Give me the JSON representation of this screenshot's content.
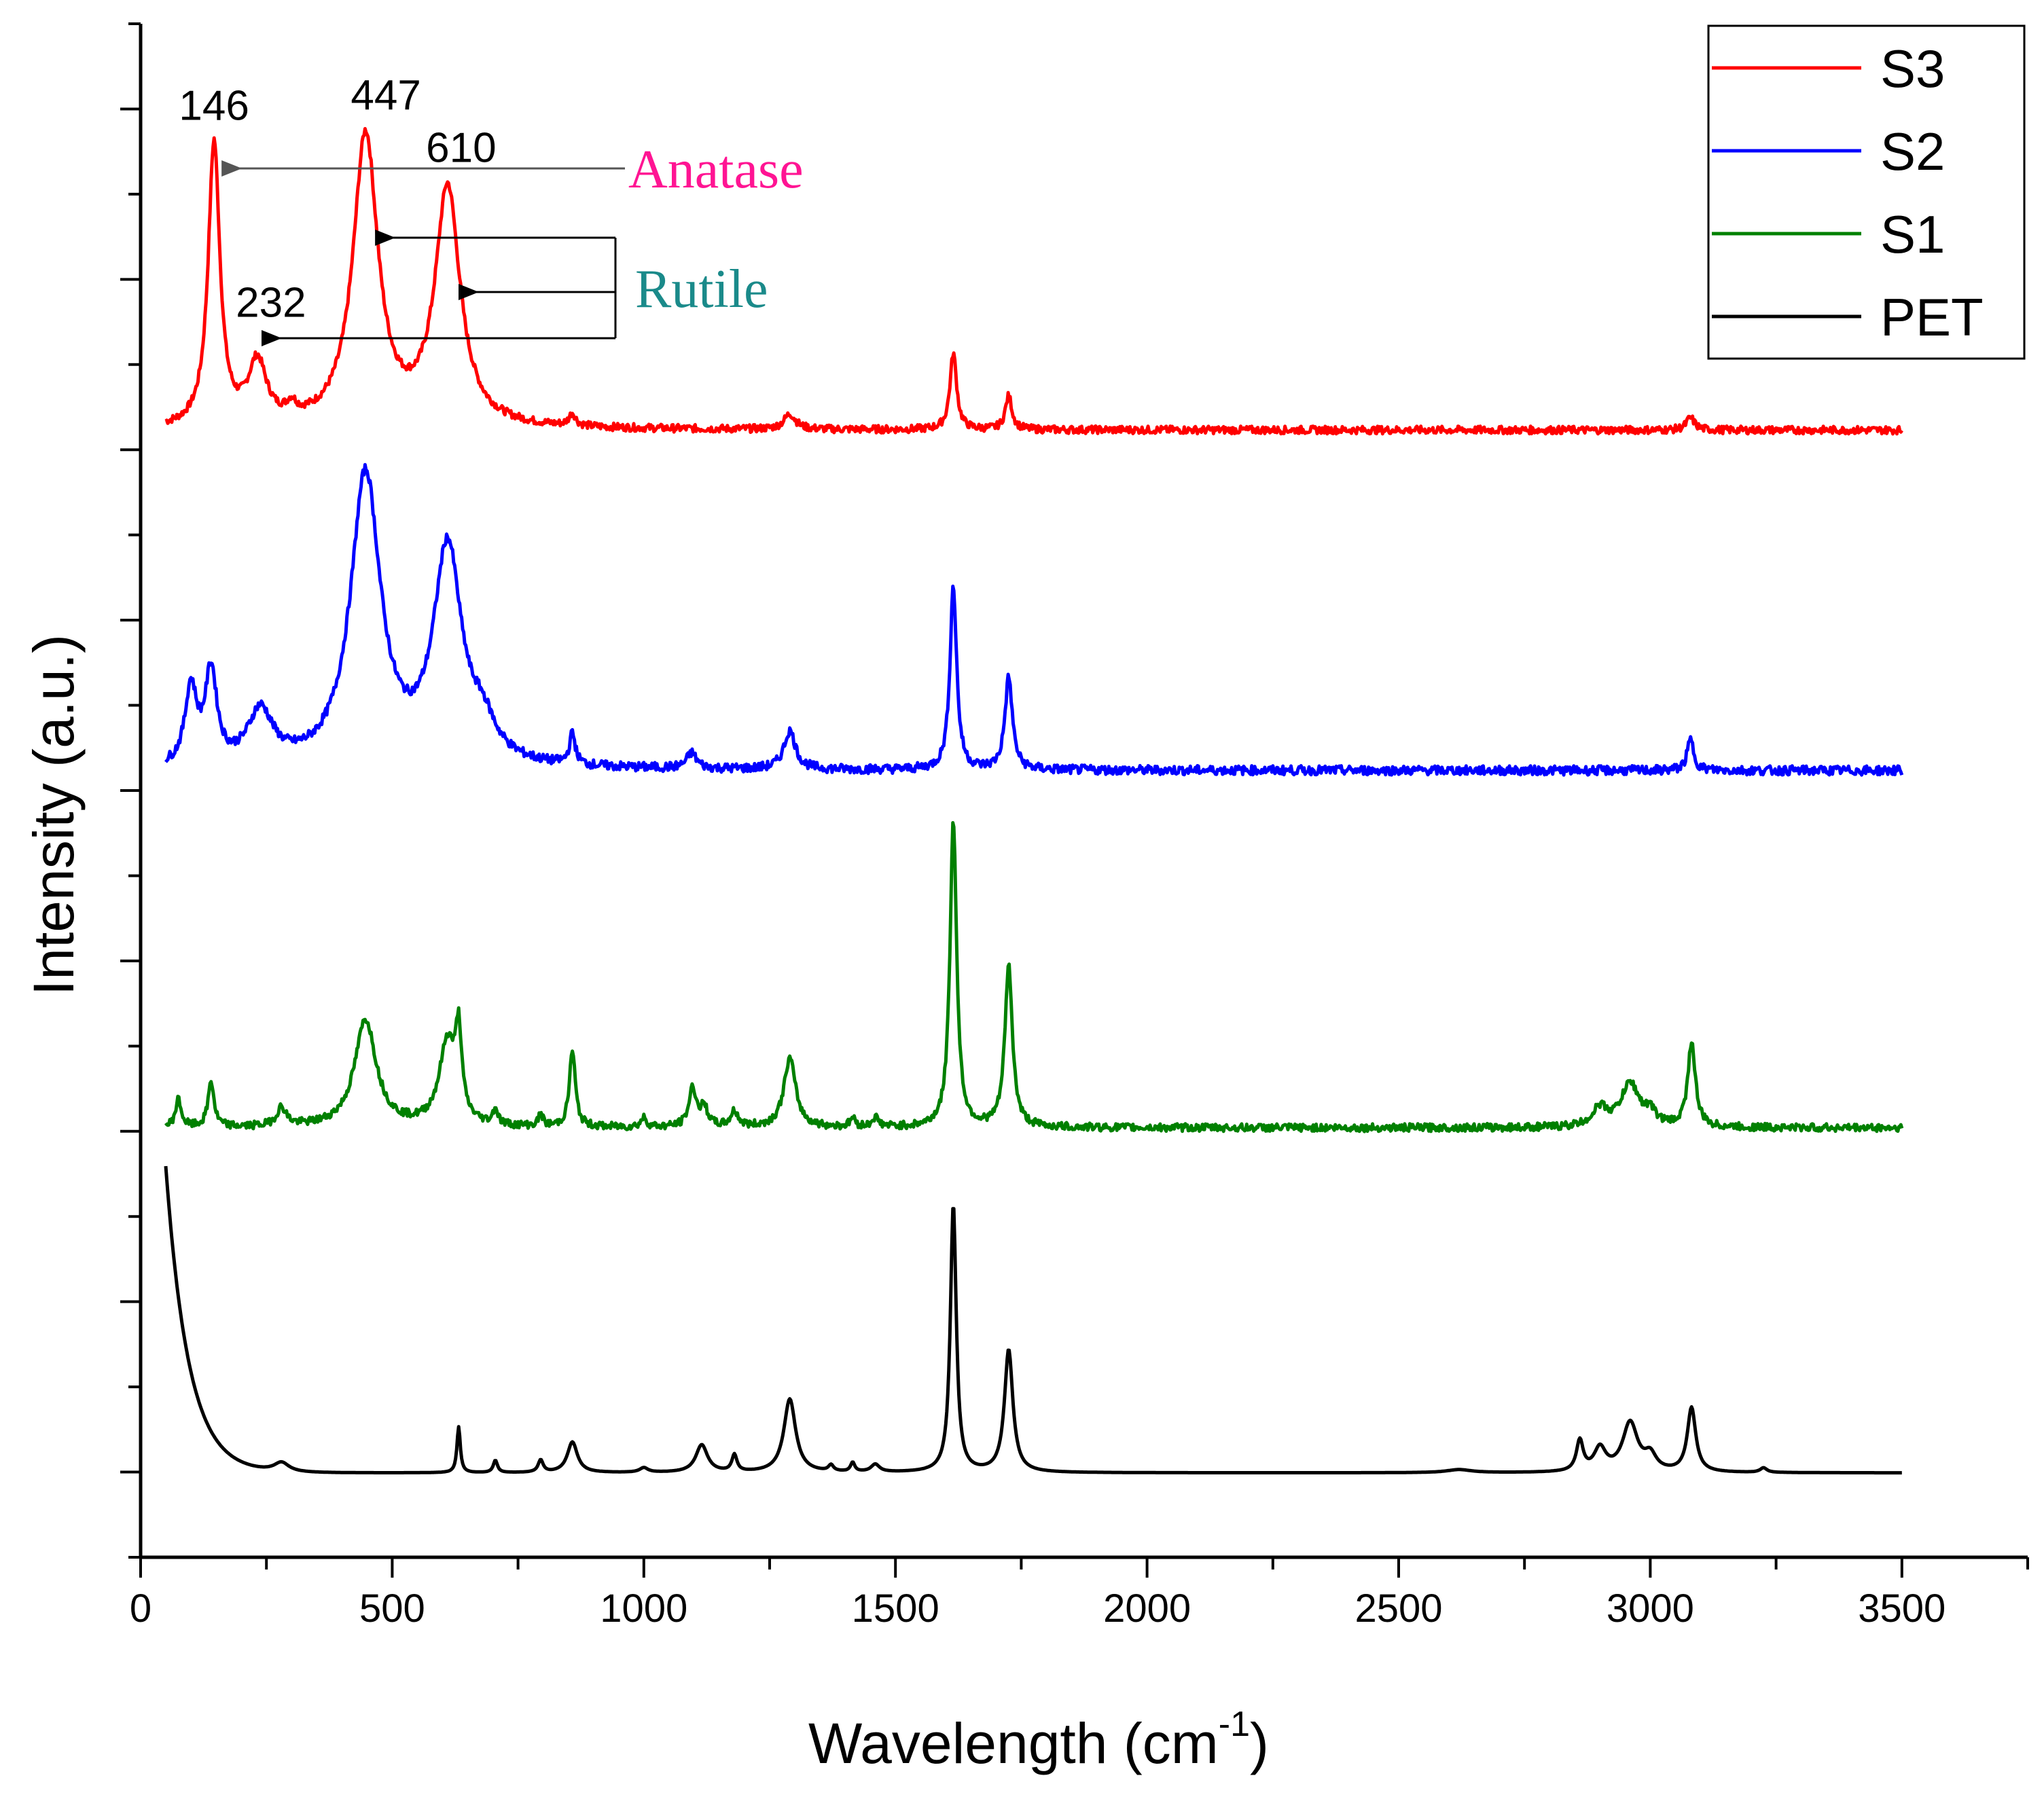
{
  "chart_data": {
    "type": "line",
    "xlabel": "Wavelength (cm",
    "xlabel_sup": "-1",
    "xlabel_close": ")",
    "ylabel": "Intensity (a.u.)",
    "xlim": [
      0,
      3750
    ],
    "xticks": [
      0,
      500,
      1000,
      1500,
      2000,
      2500,
      3000,
      3500
    ],
    "xtick_labels": [
      "0",
      "500",
      "1000",
      "1500",
      "2000",
      "2500",
      "3000",
      "3500"
    ],
    "ylim": [
      0,
      1.0
    ],
    "legend_position": "top-right",
    "series": [
      {
        "name": "S3",
        "color": "#ff0000",
        "offset": 0.725,
        "baseline": 0.01,
        "peaks": [
          {
            "x": 146,
            "h": 0.185,
            "w": 14
          },
          {
            "x": 232,
            "h": 0.04,
            "w": 22
          },
          {
            "x": 447,
            "h": 0.19,
            "w": 30
          },
          {
            "x": 610,
            "h": 0.155,
            "w": 30
          },
          {
            "x": 300,
            "h": 0.008,
            "w": 12
          },
          {
            "x": 858,
            "h": 0.008,
            "w": 8
          },
          {
            "x": 1290,
            "h": 0.01,
            "w": 14
          },
          {
            "x": 1615,
            "h": 0.05,
            "w": 8
          },
          {
            "x": 1725,
            "h": 0.022,
            "w": 8
          },
          {
            "x": 3080,
            "h": 0.008,
            "w": 10
          }
        ],
        "noise": 0.0025
      },
      {
        "name": "S2",
        "color": "#0000ff",
        "offset": 0.503,
        "baseline": 0.01,
        "peaks": [
          {
            "x": 100,
            "h": 0.05,
            "w": 14
          },
          {
            "x": 140,
            "h": 0.06,
            "w": 14
          },
          {
            "x": 238,
            "h": 0.035,
            "w": 30
          },
          {
            "x": 447,
            "h": 0.19,
            "w": 36
          },
          {
            "x": 610,
            "h": 0.14,
            "w": 34
          },
          {
            "x": 680,
            "h": 0.02,
            "w": 30
          },
          {
            "x": 858,
            "h": 0.02,
            "w": 7
          },
          {
            "x": 1095,
            "h": 0.01,
            "w": 12
          },
          {
            "x": 1290,
            "h": 0.025,
            "w": 14
          },
          {
            "x": 1615,
            "h": 0.12,
            "w": 8
          },
          {
            "x": 1725,
            "h": 0.06,
            "w": 9
          },
          {
            "x": 3080,
            "h": 0.02,
            "w": 8
          }
        ],
        "noise": 0.003
      },
      {
        "name": "S1",
        "color": "#008000",
        "offset": 0.28,
        "baseline": 0.0,
        "peaks": [
          {
            "x": 75,
            "h": 0.018,
            "w": 7
          },
          {
            "x": 140,
            "h": 0.03,
            "w": 7
          },
          {
            "x": 280,
            "h": 0.012,
            "w": 12
          },
          {
            "x": 447,
            "h": 0.07,
            "w": 26
          },
          {
            "x": 610,
            "h": 0.055,
            "w": 20
          },
          {
            "x": 632,
            "h": 0.05,
            "w": 7
          },
          {
            "x": 705,
            "h": 0.01,
            "w": 6
          },
          {
            "x": 795,
            "h": 0.008,
            "w": 5
          },
          {
            "x": 858,
            "h": 0.05,
            "w": 7
          },
          {
            "x": 1000,
            "h": 0.006,
            "w": 7
          },
          {
            "x": 1097,
            "h": 0.025,
            "w": 9
          },
          {
            "x": 1120,
            "h": 0.012,
            "w": 9
          },
          {
            "x": 1180,
            "h": 0.01,
            "w": 9
          },
          {
            "x": 1290,
            "h": 0.045,
            "w": 14
          },
          {
            "x": 1415,
            "h": 0.006,
            "w": 6
          },
          {
            "x": 1460,
            "h": 0.006,
            "w": 8
          },
          {
            "x": 1615,
            "h": 0.2,
            "w": 8
          },
          {
            "x": 1725,
            "h": 0.105,
            "w": 9
          },
          {
            "x": 2900,
            "h": 0.012,
            "w": 18
          },
          {
            "x": 2960,
            "h": 0.028,
            "w": 22
          },
          {
            "x": 3000,
            "h": 0.008,
            "w": 14
          },
          {
            "x": 3082,
            "h": 0.055,
            "w": 9
          }
        ],
        "noise": 0.0025
      },
      {
        "name": "PET",
        "color": "#000000",
        "offset": 0.055,
        "baseline": 0.0,
        "decay": {
          "amp": 0.2,
          "tau": 45,
          "x0": 50
        },
        "peaks": [
          {
            "x": 280,
            "h": 0.006,
            "w": 18
          },
          {
            "x": 632,
            "h": 0.03,
            "w": 4
          },
          {
            "x": 705,
            "h": 0.008,
            "w": 5
          },
          {
            "x": 795,
            "h": 0.008,
            "w": 6
          },
          {
            "x": 858,
            "h": 0.02,
            "w": 12
          },
          {
            "x": 1000,
            "h": 0.003,
            "w": 10
          },
          {
            "x": 1115,
            "h": 0.018,
            "w": 14
          },
          {
            "x": 1180,
            "h": 0.011,
            "w": 6
          },
          {
            "x": 1290,
            "h": 0.048,
            "w": 14
          },
          {
            "x": 1372,
            "h": 0.004,
            "w": 6
          },
          {
            "x": 1415,
            "h": 0.006,
            "w": 5
          },
          {
            "x": 1460,
            "h": 0.005,
            "w": 10
          },
          {
            "x": 1615,
            "h": 0.175,
            "w": 7
          },
          {
            "x": 1725,
            "h": 0.08,
            "w": 10
          },
          {
            "x": 2620,
            "h": 0.002,
            "w": 30
          },
          {
            "x": 2860,
            "h": 0.02,
            "w": 8
          },
          {
            "x": 2900,
            "h": 0.015,
            "w": 14
          },
          {
            "x": 2960,
            "h": 0.032,
            "w": 18
          },
          {
            "x": 3000,
            "h": 0.01,
            "w": 14
          },
          {
            "x": 3082,
            "h": 0.042,
            "w": 10
          },
          {
            "x": 3225,
            "h": 0.003,
            "w": 8
          }
        ],
        "noise": 0.0
      }
    ],
    "annotations": {
      "peak_labels": [
        {
          "text": "146",
          "x": 146,
          "series": "S3"
        },
        {
          "text": "232",
          "x": 232,
          "series": "S3"
        },
        {
          "text": "447",
          "x": 447,
          "series": "S3"
        },
        {
          "text": "610",
          "x": 610,
          "series": "S3"
        }
      ],
      "anatase": {
        "text": "Anatase",
        "color": "#ff1493",
        "target_peaks": [
          146
        ]
      },
      "rutile": {
        "text": "Rutile",
        "color": "#1a8a8a",
        "target_peaks": [
          447,
          610,
          232
        ]
      }
    }
  }
}
